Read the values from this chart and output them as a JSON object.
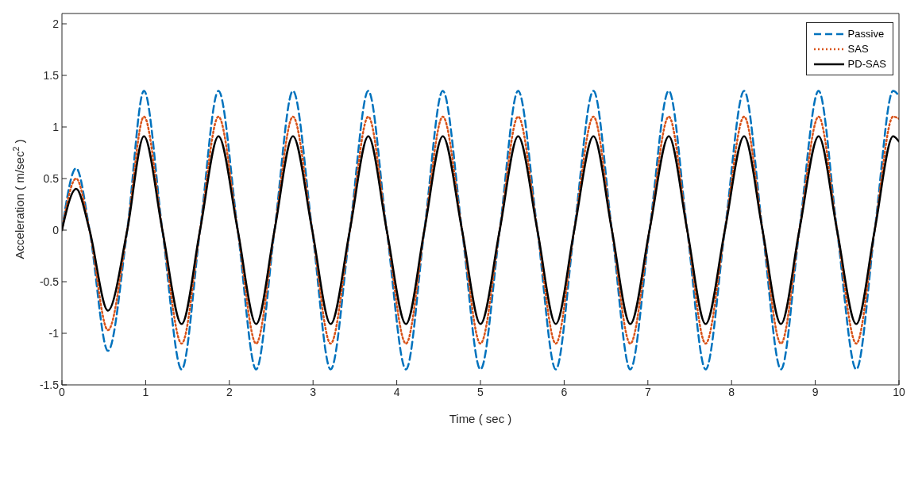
{
  "chart_data": {
    "type": "line",
    "xlabel": "Time ( sec )",
    "ylabel": "Acceleration ( m/sec$^{2}$ )",
    "x": [
      0,
      0.17,
      0.33,
      0.55,
      0.78,
      0.98,
      1.2,
      1.43,
      1.65,
      1.87,
      2.1,
      2.32,
      2.54,
      2.76,
      2.99,
      3.21,
      3.44,
      3.66,
      3.88,
      4.11,
      4.33,
      4.55,
      4.78,
      5.0,
      5.23,
      5.45,
      5.68,
      5.9,
      6.12,
      6.35,
      6.57,
      6.79,
      7.02,
      7.25,
      7.47,
      7.69,
      7.92,
      8.15,
      8.37,
      8.59,
      8.81,
      9.04,
      9.26,
      9.49,
      9.71,
      9.93,
      10
    ],
    "series": [
      {
        "name": "Passive",
        "color": "#0072bd",
        "line_style": "dashed",
        "values": [
          0,
          0.6,
          0,
          -1.17,
          0,
          1.35,
          0,
          -1.35,
          0,
          1.35,
          0,
          -1.35,
          0,
          1.35,
          0,
          -1.35,
          0,
          1.35,
          0,
          -1.35,
          0,
          1.35,
          0,
          -1.35,
          0,
          1.35,
          0,
          -1.35,
          0,
          1.35,
          0,
          -1.35,
          0,
          1.35,
          0,
          -1.35,
          0,
          1.35,
          0,
          -1.35,
          0,
          1.35,
          0,
          -1.35,
          0,
          1.35,
          1.3
        ]
      },
      {
        "name": "SAS",
        "color": "#d95319",
        "line_style": "dotted",
        "values": [
          0,
          0.5,
          0,
          -0.97,
          0,
          1.1,
          0,
          -1.1,
          0,
          1.1,
          0,
          -1.1,
          0,
          1.1,
          0,
          -1.1,
          0,
          1.1,
          0,
          -1.1,
          0,
          1.1,
          0,
          -1.1,
          0,
          1.1,
          0,
          -1.1,
          0,
          1.1,
          0,
          -1.1,
          0,
          1.1,
          0,
          -1.1,
          0,
          1.1,
          0,
          -1.1,
          0,
          1.1,
          0,
          -1.1,
          0,
          1.1,
          1.08
        ]
      },
      {
        "name": "PD-SAS",
        "color": "#000000",
        "line_style": "solid",
        "values": [
          0,
          0.4,
          0,
          -0.78,
          0,
          0.91,
          0,
          -0.91,
          0,
          0.91,
          0,
          -0.91,
          0,
          0.91,
          0,
          -0.91,
          0,
          0.91,
          0,
          -0.91,
          0,
          0.91,
          0,
          -0.91,
          0,
          0.91,
          0,
          -0.91,
          0,
          0.91,
          0,
          -0.91,
          0,
          0.91,
          0,
          -0.91,
          0,
          0.91,
          0,
          -0.91,
          0,
          0.91,
          0,
          -0.91,
          0,
          0.91,
          0.86
        ]
      }
    ],
    "xlim": [
      0,
      10
    ],
    "xticks": [
      0,
      1,
      2,
      3,
      4,
      5,
      6,
      7,
      8,
      9,
      10
    ],
    "ylim": [
      -1.5,
      2.1
    ],
    "yticks": [
      -1.5,
      -1,
      -0.5,
      0,
      0.5,
      1,
      1.5,
      2
    ],
    "grid": false,
    "legend": "top right",
    "marker": "none"
  }
}
